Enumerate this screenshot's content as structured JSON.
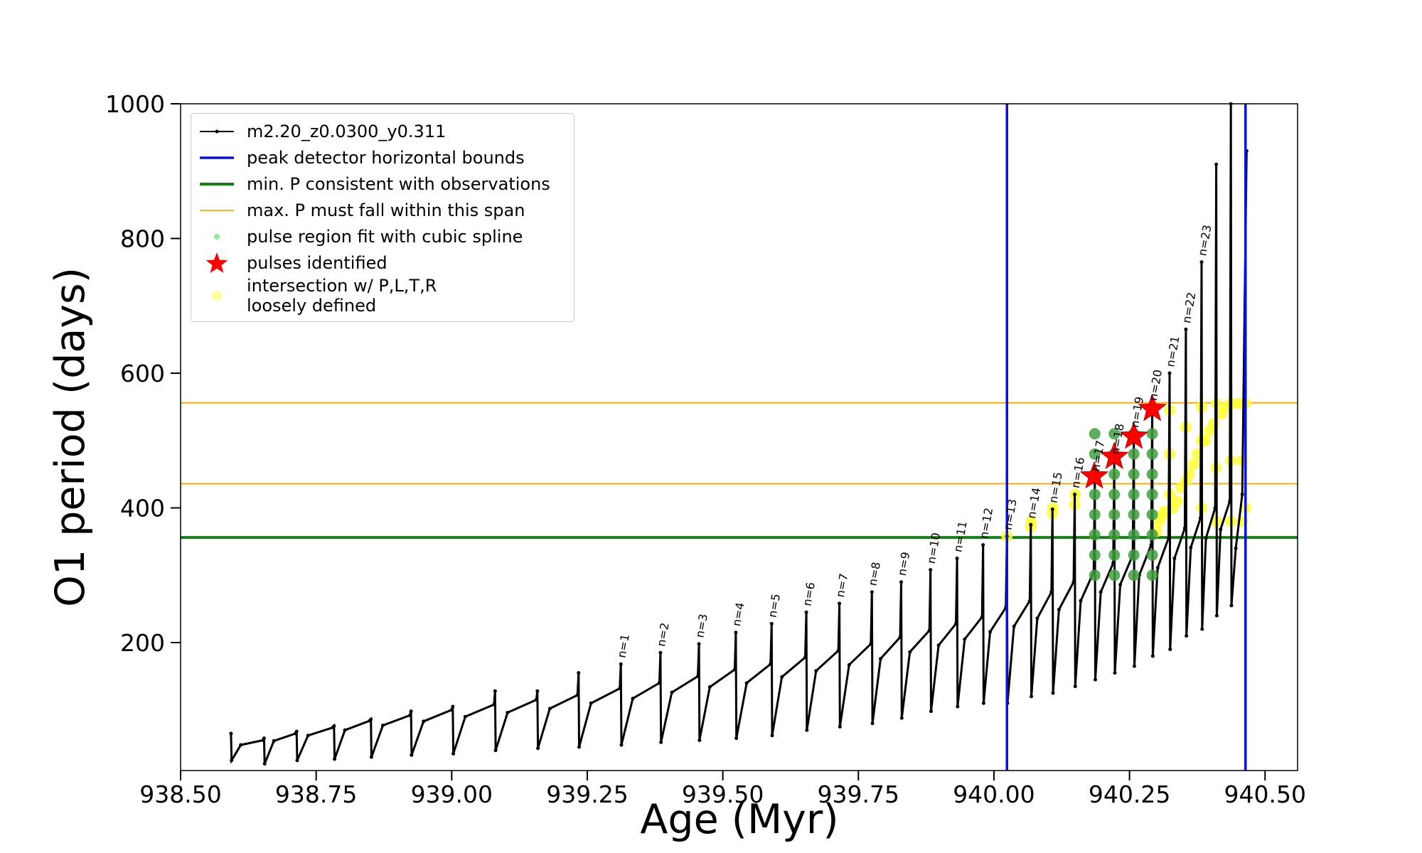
{
  "chart_data": {
    "type": "line",
    "x_label": "Age (Myr)",
    "y_label": "O1 period (days)",
    "xlim": [
      938.5,
      940.56
    ],
    "ylim": [
      10,
      1000
    ],
    "xticks": [
      {
        "value": 938.5,
        "label": "938.50"
      },
      {
        "value": 938.75,
        "label": "938.75"
      },
      {
        "value": 939.0,
        "label": "939.00"
      },
      {
        "value": 939.25,
        "label": "939.25"
      },
      {
        "value": 939.5,
        "label": "939.50"
      },
      {
        "value": 939.75,
        "label": "939.75"
      },
      {
        "value": 940.0,
        "label": "940.00"
      },
      {
        "value": 940.25,
        "label": "940.25"
      },
      {
        "value": 940.5,
        "label": "940.50"
      }
    ],
    "yticks": [
      200,
      400,
      600,
      800,
      1000
    ],
    "legend": "upper left",
    "series": [
      {
        "name": "m2.20_z0.0300_y0.311",
        "color": "#000000",
        "x": [
          938.593,
          938.594,
          938.611,
          938.652,
          938.654,
          938.655,
          938.672,
          938.712,
          938.714,
          938.715,
          938.735,
          938.781,
          938.783,
          938.784,
          938.803,
          938.849,
          938.851,
          938.852,
          938.873,
          938.923,
          938.925,
          938.926,
          938.948,
          939.0,
          939.002,
          939.003,
          939.025,
          939.078,
          939.08,
          939.081,
          939.103,
          939.156,
          939.158,
          939.159,
          939.181,
          939.232,
          939.234,
          939.235,
          939.257,
          939.31,
          939.312,
          939.313,
          939.334,
          939.383,
          939.385,
          939.386,
          939.406,
          939.454,
          939.456,
          939.457,
          939.476,
          939.522,
          939.524,
          939.525,
          939.544,
          939.588,
          939.59,
          939.591,
          939.609,
          939.652,
          939.654,
          939.655,
          939.672,
          939.713,
          939.715,
          939.716,
          939.733,
          939.773,
          939.775,
          939.776,
          939.791,
          939.827,
          939.829,
          939.83,
          939.845,
          939.881,
          939.883,
          939.884,
          939.898,
          939.93,
          939.932,
          939.933,
          939.946,
          939.978,
          939.98,
          939.981,
          939.993,
          940.022,
          940.024,
          940.025,
          940.037,
          940.066,
          940.068,
          940.069,
          940.08,
          940.106,
          940.108,
          940.109,
          940.12,
          940.147,
          940.149,
          940.15,
          940.16,
          940.184,
          940.186,
          940.187,
          940.197,
          940.22,
          940.222,
          940.223,
          940.233,
          940.256,
          940.258,
          940.259,
          940.268,
          940.29,
          940.292,
          940.293,
          940.302,
          940.322,
          940.324,
          940.325,
          940.333,
          940.352,
          940.354,
          940.355,
          940.363,
          940.381,
          940.383,
          940.384,
          940.391,
          940.408,
          940.41,
          940.411,
          940.418,
          940.435,
          940.437,
          940.438,
          940.446,
          940.458,
          940.466
        ],
        "values": [
          65,
          25,
          48,
          55,
          58,
          20,
          54,
          65,
          68,
          25,
          62,
          74,
          76,
          27,
          70,
          84,
          86,
          30,
          77,
          92,
          98,
          33,
          83,
          100,
          105,
          35,
          90,
          108,
          128,
          40,
          96,
          115,
          128,
          43,
          102,
          122,
          155,
          45,
          110,
          132,
          168,
          48,
          117,
          140,
          185,
          52,
          126,
          150,
          198,
          55,
          134,
          160,
          215,
          58,
          140,
          168,
          228,
          62,
          149,
          178,
          245,
          70,
          158,
          188,
          258,
          75,
          167,
          198,
          275,
          80,
          176,
          208,
          290,
          88,
          186,
          218,
          308,
          98,
          196,
          228,
          325,
          105,
          205,
          238,
          345,
          110,
          216,
          252,
          358,
          110,
          224,
          262,
          375,
          120,
          236,
          275,
          398,
          125,
          249,
          290,
          420,
          135,
          262,
          305,
          445,
          145,
          275,
          318,
          470,
          155,
          286,
          330,
          510,
          165,
          300,
          345,
          550,
          180,
          311,
          355,
          600,
          190,
          325,
          370,
          665,
          210,
          341,
          385,
          765,
          220,
          355,
          400,
          910,
          240,
          368,
          410,
          1000,
          255,
          340,
          420,
          930
        ]
      }
    ],
    "vlines": {
      "name": "peak detector horizontal bounds",
      "color": "#0a10e0",
      "x": [
        940.024,
        940.464
      ]
    },
    "hlines": [
      {
        "name": "min. P consistent with observations",
        "color": "#138013",
        "y": [
          356
        ]
      },
      {
        "name": "max. P must fall within this span",
        "color": "#ffa500",
        "y": [
          436,
          556
        ]
      }
    ],
    "scatter": [
      {
        "name": "pulse region fit with cubic spline",
        "color": "#3f9f3f",
        "marker": "circle",
        "x": [
          940.186,
          940.186,
          940.186,
          940.186,
          940.186,
          940.186,
          940.186,
          940.186,
          940.222,
          940.222,
          940.222,
          940.222,
          940.222,
          940.222,
          940.222,
          940.222,
          940.258,
          940.258,
          940.258,
          940.258,
          940.258,
          940.258,
          940.258,
          940.258,
          940.292,
          940.292,
          940.292,
          940.292,
          940.292,
          940.292,
          940.292,
          940.292
        ],
        "values": [
          300,
          330,
          360,
          390,
          420,
          450,
          480,
          510,
          300,
          330,
          360,
          390,
          420,
          450,
          480,
          510,
          300,
          330,
          360,
          390,
          420,
          450,
          480,
          510,
          300,
          330,
          360,
          390,
          420,
          450,
          480,
          510
        ]
      },
      {
        "name": "pulses identified",
        "color": "#ff0000",
        "marker": "star",
        "x": [
          940.185,
          940.222,
          940.258,
          940.292
        ],
        "values": [
          447,
          476,
          506,
          547
        ]
      },
      {
        "name": "intersection w/ P,L,T,R\nloosely defined",
        "color": "#ffff33",
        "marker": "circle",
        "x": [
          940.024,
          940.068,
          940.069,
          940.108,
          940.109,
          940.149,
          940.15,
          940.3,
          940.305,
          940.31,
          940.315,
          940.324,
          940.324,
          940.324,
          940.33,
          940.338,
          940.345,
          940.354,
          940.354,
          940.36,
          940.368,
          940.375,
          940.383,
          940.383,
          940.383,
          940.39,
          940.398,
          940.405,
          940.41,
          940.41,
          940.41,
          940.42,
          940.428,
          940.437,
          940.437,
          940.437,
          940.45,
          940.458,
          940.458,
          940.464,
          940.464
        ],
        "values": [
          358,
          372,
          380,
          392,
          400,
          405,
          420,
          365,
          380,
          390,
          395,
          420,
          480,
          545,
          400,
          410,
          430,
          440,
          520,
          450,
          465,
          480,
          400,
          500,
          550,
          500,
          515,
          525,
          380,
          460,
          555,
          540,
          550,
          380,
          470,
          555,
          555,
          380,
          470,
          555,
          400
        ]
      }
    ],
    "annotations": [
      {
        "text": "n=1",
        "x": 939.312,
        "y": 168
      },
      {
        "text": "n=2",
        "x": 939.385,
        "y": 185
      },
      {
        "text": "n=3",
        "x": 939.456,
        "y": 198
      },
      {
        "text": "n=4",
        "x": 939.524,
        "y": 215
      },
      {
        "text": "n=5",
        "x": 939.59,
        "y": 228
      },
      {
        "text": "n=6",
        "x": 939.654,
        "y": 245
      },
      {
        "text": "n=7",
        "x": 939.715,
        "y": 258
      },
      {
        "text": "n=8",
        "x": 939.775,
        "y": 275
      },
      {
        "text": "n=9",
        "x": 939.829,
        "y": 290
      },
      {
        "text": "n=10",
        "x": 939.883,
        "y": 308
      },
      {
        "text": "n=11",
        "x": 939.932,
        "y": 325
      },
      {
        "text": "n=12",
        "x": 939.98,
        "y": 345
      },
      {
        "text": "n=13",
        "x": 940.024,
        "y": 358
      },
      {
        "text": "n=14",
        "x": 940.068,
        "y": 375
      },
      {
        "text": "n=15",
        "x": 940.108,
        "y": 398
      },
      {
        "text": "n=16",
        "x": 940.149,
        "y": 420
      },
      {
        "text": "n=17",
        "x": 940.186,
        "y": 445
      },
      {
        "text": "n=18",
        "x": 940.222,
        "y": 470
      },
      {
        "text": "n=19",
        "x": 940.258,
        "y": 510
      },
      {
        "text": "n=20",
        "x": 940.292,
        "y": 550
      },
      {
        "text": "n=21",
        "x": 940.324,
        "y": 600
      },
      {
        "text": "n=22",
        "x": 940.354,
        "y": 665
      },
      {
        "text": "n=23",
        "x": 940.383,
        "y": 765
      }
    ]
  }
}
